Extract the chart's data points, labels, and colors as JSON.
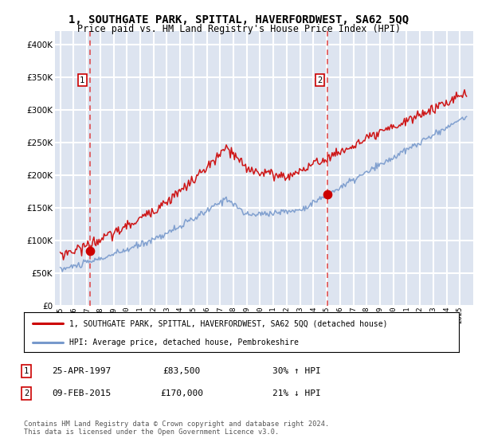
{
  "title": "1, SOUTHGATE PARK, SPITTAL, HAVERFORDWEST, SA62 5QQ",
  "subtitle": "Price paid vs. HM Land Registry's House Price Index (HPI)",
  "legend_line1": "1, SOUTHGATE PARK, SPITTAL, HAVERFORDWEST, SA62 5QQ (detached house)",
  "legend_line2": "HPI: Average price, detached house, Pembrokeshire",
  "sale1_date": "25-APR-1997",
  "sale1_price": "£83,500",
  "sale1_hpi": "30% ↑ HPI",
  "sale2_date": "09-FEB-2015",
  "sale2_price": "£170,000",
  "sale2_hpi": "21% ↓ HPI",
  "footer": "Contains HM Land Registry data © Crown copyright and database right 2024.\nThis data is licensed under the Open Government Licence v3.0.",
  "plot_bg_color": "#dde4f0",
  "grid_color": "#ffffff",
  "red_line_color": "#cc0000",
  "blue_line_color": "#7799cc",
  "sale_dot_color": "#cc0000",
  "dashed_line_color": "#dd3333",
  "ylim": [
    0,
    420000
  ],
  "yticks": [
    0,
    50000,
    100000,
    150000,
    200000,
    250000,
    300000,
    350000,
    400000
  ]
}
